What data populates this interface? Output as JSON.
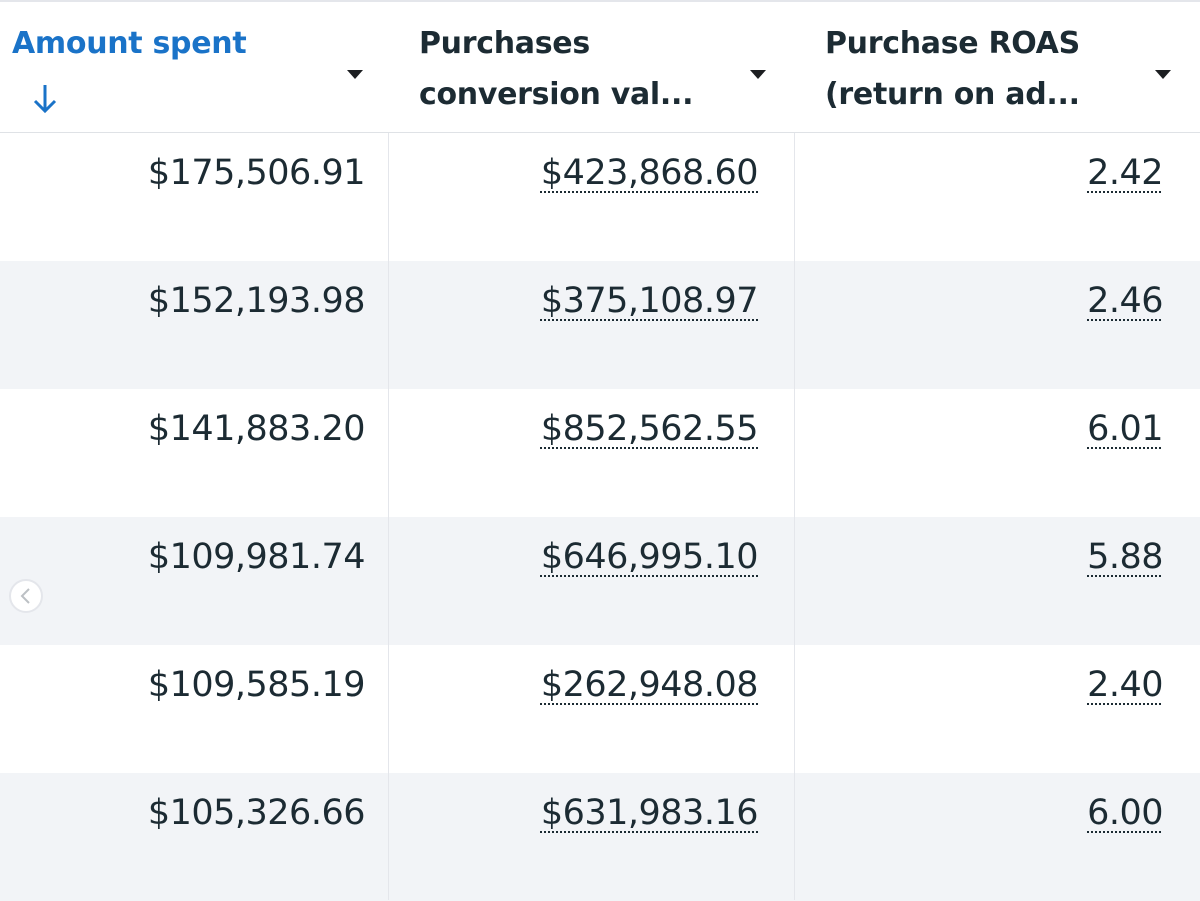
{
  "table": {
    "columns": [
      {
        "lines": [
          "Amount spent"
        ]
      },
      {
        "lines": [
          "Purchases",
          "conversion val..."
        ]
      },
      {
        "lines": [
          "Purchase ROAS",
          "(return on ad..."
        ]
      }
    ],
    "rows": [
      [
        "$175,506.91",
        "$423,868.60",
        "2.42"
      ],
      [
        "$152,193.98",
        "$375,108.97",
        "2.46"
      ],
      [
        "$141,883.20",
        "$852,562.55",
        "6.01"
      ],
      [
        "$109,981.74",
        "$646,995.10",
        "5.88"
      ],
      [
        "$109,585.19",
        "$262,948.08",
        "2.40"
      ],
      [
        "$105,326.66",
        "$631,983.16",
        "6.00"
      ]
    ]
  }
}
